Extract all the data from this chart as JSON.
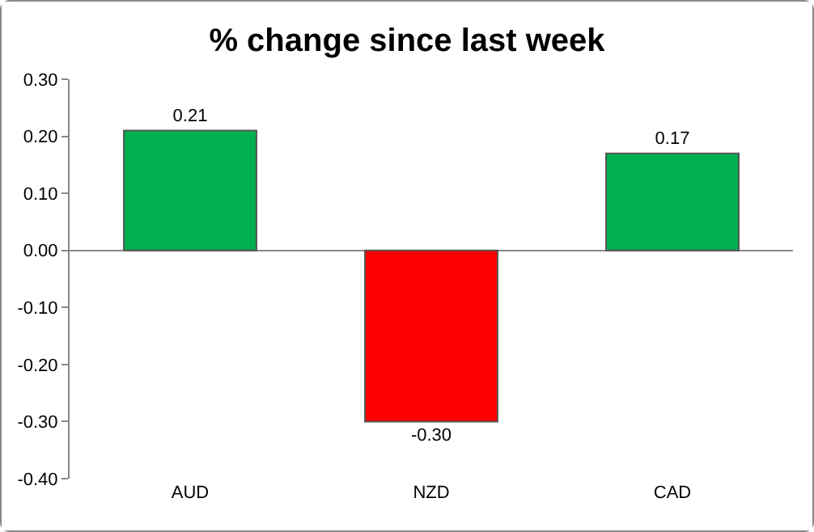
{
  "chart_data": {
    "type": "bar",
    "title": "% change since last week",
    "categories": [
      "AUD",
      "NZD",
      "CAD"
    ],
    "values": [
      0.21,
      -0.3,
      0.17
    ],
    "colors": [
      "#00b050",
      "#ff0000",
      "#00b050"
    ],
    "value_labels": [
      "0.21",
      "-0.30",
      "0.17"
    ],
    "ylim": [
      -0.4,
      0.3
    ],
    "yticks": [
      {
        "value": -0.4,
        "label": "-0.40"
      },
      {
        "value": -0.3,
        "label": "-0.30"
      },
      {
        "value": -0.2,
        "label": "-0.20"
      },
      {
        "value": -0.1,
        "label": "-0.10"
      },
      {
        "value": 0,
        "label": "0.00"
      },
      {
        "value": 0.1,
        "label": "0.10"
      },
      {
        "value": 0.2,
        "label": "0.20"
      },
      {
        "value": 0.3,
        "label": "0.30"
      }
    ]
  }
}
